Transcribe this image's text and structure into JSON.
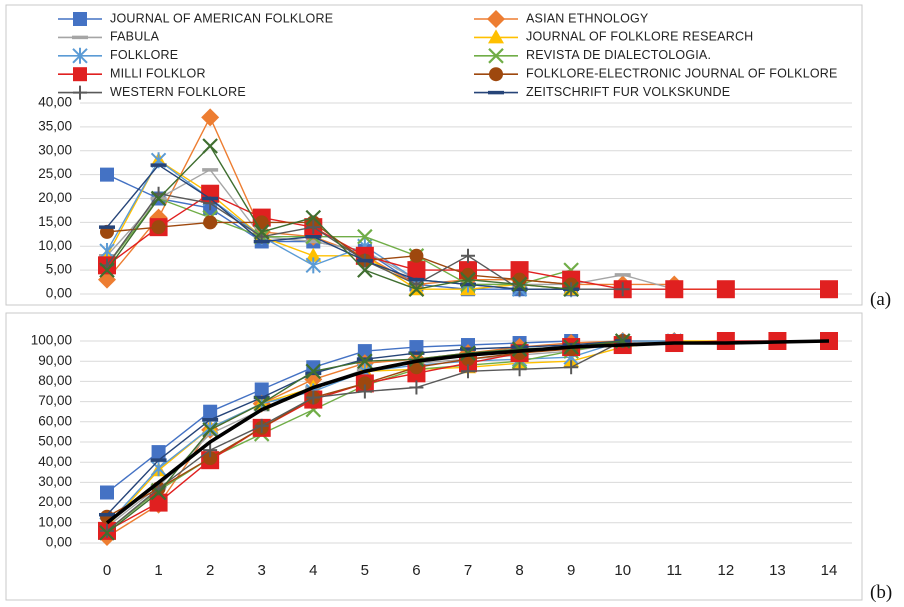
{
  "chart_data": [
    {
      "type": "line",
      "panel": "(a)",
      "ylim": [
        0,
        40
      ],
      "yticks": [
        "0,00",
        "5,00",
        "10,00",
        "15,00",
        "20,00",
        "25,00",
        "30,00",
        "35,00",
        "40,00"
      ],
      "x": [
        0,
        1,
        2,
        3,
        4,
        5,
        6,
        7,
        8,
        9,
        10,
        11,
        12,
        13,
        14
      ],
      "grid": true,
      "legend_position": "top",
      "series": [
        {
          "name": "JOURNAL OF AMERICAN FOLKLORE",
          "color": "#4472c4",
          "marker": "square",
          "values": [
            25,
            20,
            18,
            11,
            11,
            9,
            2,
            1,
            1,
            1,
            null,
            null,
            null,
            null,
            null
          ]
        },
        {
          "name": "ASIAN ETHNOLOGY",
          "color": "#ed7d31",
          "marker": "diamond",
          "values": [
            3,
            16,
            37,
            13,
            12,
            8,
            2,
            3,
            3,
            2,
            2,
            2,
            null,
            null,
            null
          ]
        },
        {
          "name": "FABULA",
          "color": "#a5a5a5",
          "marker": "dash",
          "values": [
            8,
            20,
            26,
            12,
            11,
            9,
            3,
            2,
            2,
            2,
            4,
            1,
            null,
            null,
            null
          ]
        },
        {
          "name": "JOURNAL OF FOLKLORE RESEARCH",
          "color": "#ffc000",
          "marker": "triangle",
          "values": [
            8,
            28,
            21,
            12,
            8,
            8,
            1,
            1,
            2,
            1,
            1,
            1,
            1,
            null,
            null
          ]
        },
        {
          "name": "FOLKLORE",
          "color": "#5b9bd5",
          "marker": "star",
          "values": [
            9,
            28,
            20,
            12,
            6,
            10,
            3,
            2,
            1,
            1,
            1,
            1,
            null,
            null,
            null
          ]
        },
        {
          "name": "REVISTA DE DIALECTOLOGIA.",
          "color": "#70ad47",
          "marker": "x",
          "values": [
            6,
            20,
            16,
            12,
            12,
            12,
            8,
            2,
            2,
            5,
            null,
            null,
            null,
            null,
            null
          ]
        },
        {
          "name": "MILLI FOLKLOR",
          "color": "#e02020",
          "marker": "bigsquare",
          "values": [
            6,
            14,
            21,
            16,
            14,
            8,
            5,
            5,
            5,
            3,
            1,
            1,
            1,
            null,
            1
          ]
        },
        {
          "name": "FOLKLORE-ELECTRONIC JOURNAL OF FOLKLORE",
          "color": "#9e480e",
          "marker": "circle",
          "values": [
            13,
            14,
            15,
            15,
            15,
            7,
            8,
            4,
            3,
            2,
            null,
            null,
            null,
            null,
            null
          ]
        },
        {
          "name": "WESTERN FOLKLORE",
          "color": "#595959",
          "marker": "plus",
          "values": [
            6,
            21,
            19,
            12,
            14,
            7,
            2,
            8,
            1,
            1,
            1,
            null,
            null,
            null,
            null
          ]
        },
        {
          "name": "ZEITSCHRIFT FUR VOLKSKUNDE",
          "color": "#264478",
          "marker": "dash",
          "values": [
            14,
            27,
            20,
            11,
            12,
            7,
            3,
            2,
            1,
            1,
            null,
            null,
            null,
            null,
            null
          ]
        },
        {
          "name": "",
          "color": "#3f6e30",
          "marker": "x",
          "values": [
            5,
            20,
            31,
            13,
            16,
            5,
            1,
            3,
            2,
            1,
            null,
            null,
            null,
            null,
            null
          ]
        }
      ]
    },
    {
      "type": "line",
      "panel": "(b)",
      "ylim": [
        0,
        100
      ],
      "yticks": [
        "0,00",
        "10,00",
        "20,00",
        "30,00",
        "40,00",
        "50,00",
        "60,00",
        "70,00",
        "80,00",
        "90,00",
        "100,00"
      ],
      "x": [
        0,
        1,
        2,
        3,
        4,
        5,
        6,
        7,
        8,
        9,
        10,
        11,
        12,
        13,
        14
      ],
      "xticks": [
        "0",
        "1",
        "2",
        "3",
        "4",
        "5",
        "6",
        "7",
        "8",
        "9",
        "10",
        "11",
        "12",
        "13",
        "14"
      ],
      "grid": true,
      "series": [
        {
          "name": "JOURNAL OF AMERICAN FOLKLORE",
          "color": "#4472c4",
          "marker": "square",
          "values": [
            25,
            45,
            65,
            76,
            87,
            95,
            97,
            98,
            99,
            100,
            null,
            null,
            null,
            null,
            null
          ]
        },
        {
          "name": "ASIAN ETHNOLOGY",
          "color": "#ed7d31",
          "marker": "diamond",
          "values": [
            3,
            19,
            56,
            69,
            81,
            89,
            91,
            94,
            97,
            99,
            100,
            100,
            null,
            null,
            null
          ]
        },
        {
          "name": "FABULA",
          "color": "#a5a5a5",
          "marker": "dash",
          "values": [
            8,
            28,
            54,
            66,
            77,
            86,
            89,
            91,
            93,
            95,
            99,
            100,
            null,
            null,
            null
          ]
        },
        {
          "name": "JOURNAL OF FOLKLORE RESEARCH",
          "color": "#ffc000",
          "marker": "triangle",
          "values": [
            8,
            36,
            57,
            69,
            77,
            85,
            86,
            87,
            89,
            90,
            97,
            100,
            100,
            null,
            null
          ]
        },
        {
          "name": "FOLKLORE",
          "color": "#5b9bd5",
          "marker": "star",
          "values": [
            9,
            37,
            57,
            69,
            75,
            85,
            88,
            90,
            91,
            92,
            100,
            100,
            null,
            null,
            null
          ]
        },
        {
          "name": "REVISTA DE DIALECTOLOGIA.",
          "color": "#70ad47",
          "marker": "x",
          "values": [
            6,
            26,
            42,
            54,
            66,
            78,
            86,
            88,
            90,
            95,
            100,
            null,
            null,
            null,
            null
          ]
        },
        {
          "name": "MILLI FOLKLOR",
          "color": "#e02020",
          "marker": "bigsquare",
          "values": [
            6,
            20,
            41,
            57,
            71,
            79,
            84,
            89,
            94,
            97,
            98,
            99,
            100,
            100,
            100
          ]
        },
        {
          "name": "FOLKLORE-ELECTRONIC JOURNAL OF FOLKLORE",
          "color": "#9e480e",
          "marker": "circle",
          "values": [
            13,
            27,
            42,
            57,
            72,
            79,
            87,
            91,
            94,
            96,
            100,
            null,
            null,
            null,
            null
          ]
        },
        {
          "name": "WESTERN FOLKLORE",
          "color": "#595959",
          "marker": "plus",
          "values": [
            6,
            27,
            46,
            58,
            72,
            75,
            77,
            85,
            86,
            87,
            100,
            null,
            null,
            null,
            null
          ]
        },
        {
          "name": "ZEITSCHRIFT FUR VOLKSKUNDE",
          "color": "#264478",
          "marker": "dash",
          "values": [
            14,
            41,
            61,
            72,
            84,
            91,
            94,
            96,
            97,
            98,
            100,
            null,
            null,
            null,
            null
          ]
        },
        {
          "name": "",
          "color": "#3f6e30",
          "marker": "x",
          "values": [
            5,
            25,
            56,
            69,
            85,
            90,
            91,
            94,
            96,
            97,
            100,
            null,
            null,
            null,
            null
          ]
        },
        {
          "name": "",
          "color": "#000000",
          "marker": "none",
          "bold": true,
          "values": [
            10,
            30,
            50,
            66,
            77,
            85,
            90,
            93,
            95,
            97,
            98,
            99,
            99,
            99.5,
            100
          ]
        }
      ]
    }
  ]
}
